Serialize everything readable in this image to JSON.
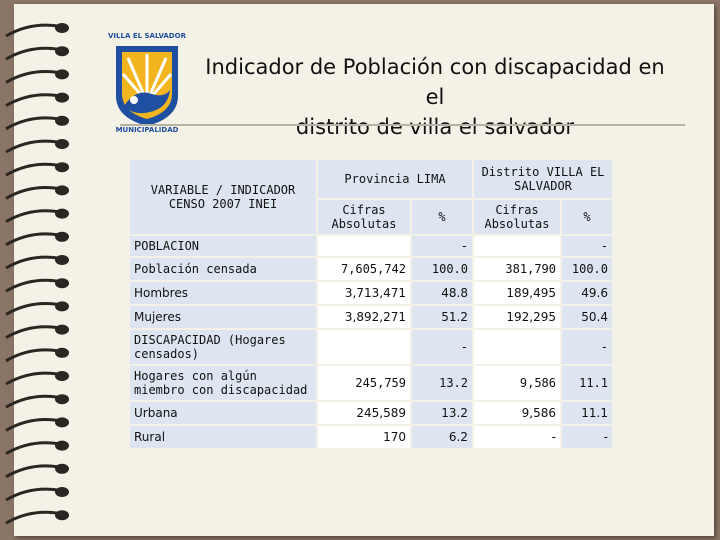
{
  "slide": {
    "title_line1": "Indicador de Población con discapacidad en el",
    "title_line2": "distrito de villa el salvador"
  },
  "logo": {
    "text_top": "VILLA EL SALVADOR",
    "text_bottom": "MUNICIPALIDAD",
    "colors": {
      "gold": "#f2b51f",
      "blue": "#1f4fa0"
    }
  },
  "table": {
    "header": {
      "variable": "VARIABLE / INDICADOR CENSO 2007 INEI",
      "group1": "Provincia LIMA",
      "group2": "Distrito VILLA EL SALVADOR",
      "cifras1": "Cifras Absolutas",
      "pct1": "%",
      "cifras2": "Cifras Absolutas",
      "pct2": "%"
    },
    "rows": [
      {
        "label": "POBLACION",
        "lima_abs": "",
        "lima_pct": "-",
        "ves_abs": "",
        "ves_pct": "-"
      },
      {
        "label": "Población censada",
        "lima_abs": "7,605,742",
        "lima_pct": "100.0",
        "ves_abs": "381,790",
        "ves_pct": "100.0"
      },
      {
        "label": "Hombres",
        "lima_abs": "3,713,471",
        "lima_pct": "48.8",
        "ves_abs": "189,495",
        "ves_pct": "49.6"
      },
      {
        "label": "Mujeres",
        "lima_abs": "3,892,271",
        "lima_pct": "51.2",
        "ves_abs": "192,295",
        "ves_pct": "50.4"
      },
      {
        "label": "DISCAPACIDAD (Hogares censados)",
        "lima_abs": "",
        "lima_pct": "-",
        "ves_abs": "",
        "ves_pct": "-"
      },
      {
        "label": "Hogares con algún miembro con discapacidad",
        "lima_abs": "245,759",
        "lima_pct": "13.2",
        "ves_abs": "9,586",
        "ves_pct": "11.1"
      },
      {
        "label": "Urbana",
        "lima_abs": "245,589",
        "lima_pct": "13.2",
        "ves_abs": "9,586",
        "ves_pct": "11.1"
      },
      {
        "label": "Rural",
        "lima_abs": "170",
        "lima_pct": "6.2",
        "ves_abs": "-",
        "ves_pct": "-"
      }
    ]
  }
}
